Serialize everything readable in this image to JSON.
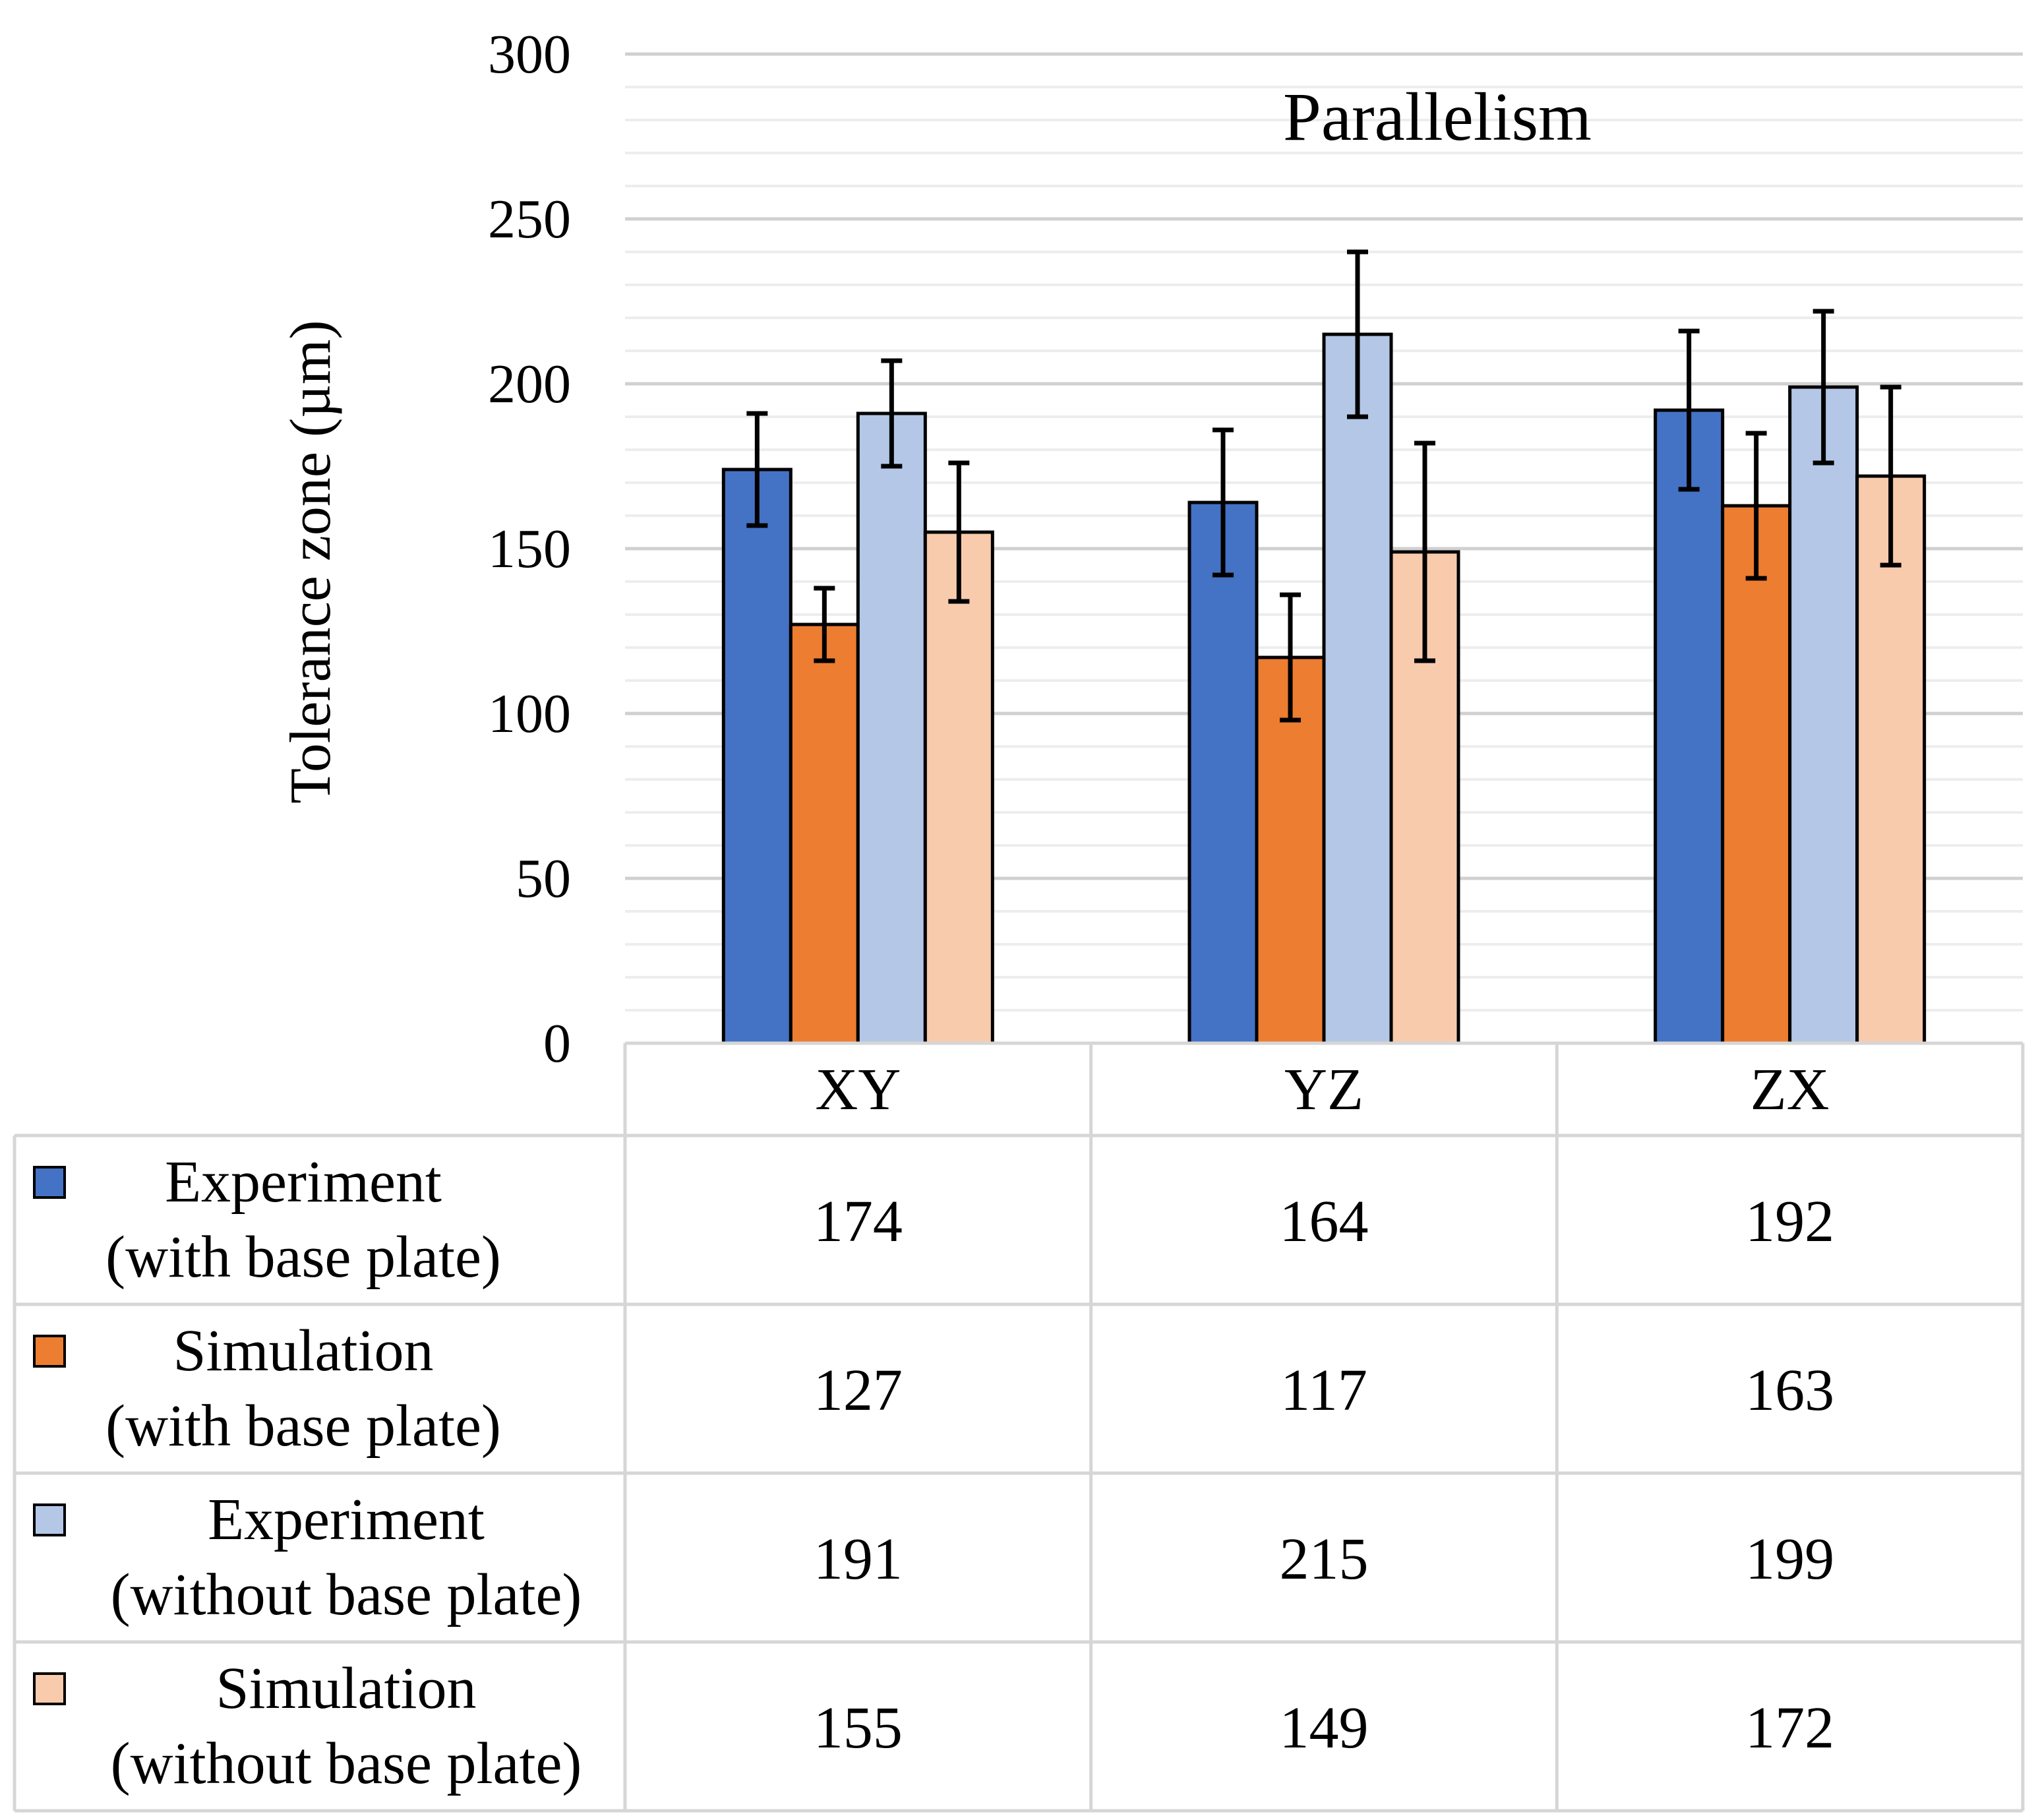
{
  "chart_data": {
    "type": "bar",
    "title": "Parallelism",
    "xlabel": "",
    "ylabel": "Tolerance zone (µm)",
    "ylim": [
      0,
      300
    ],
    "yticks": [
      "0",
      "50",
      "100",
      "150",
      "200",
      "250",
      "300"
    ],
    "categories": [
      "XY",
      "YZ",
      "ZX"
    ],
    "grid": true,
    "series": [
      {
        "name": "Experiment\n(with base plate)",
        "label_lines": [
          "Experiment",
          "(with base plate)"
        ],
        "color": "#4472C4",
        "values": [
          174,
          164,
          192
        ],
        "value_labels": [
          "174",
          "164",
          "192"
        ],
        "error_low": [
          157,
          142,
          168
        ],
        "error_high": [
          191,
          186,
          216
        ]
      },
      {
        "name": "Simulation\n(with base plate)",
        "label_lines": [
          "Simulation",
          "(with base plate)"
        ],
        "color": "#ED7D31",
        "values": [
          127,
          117,
          163
        ],
        "value_labels": [
          "127",
          "117",
          "163"
        ],
        "error_low": [
          116,
          98,
          141
        ],
        "error_high": [
          138,
          136,
          185
        ]
      },
      {
        "name": "Experiment\n(without base plate)",
        "label_lines": [
          "Experiment",
          "(without base plate)"
        ],
        "color": "#B4C7E7",
        "values": [
          191,
          215,
          199
        ],
        "value_labels": [
          "191",
          "215",
          "199"
        ],
        "error_low": [
          175,
          190,
          176
        ],
        "error_high": [
          207,
          240,
          222
        ]
      },
      {
        "name": "Simulation\n(without base plate)",
        "label_lines": [
          "Simulation",
          "(without base plate)"
        ],
        "color": "#F8CBAD",
        "values": [
          155,
          149,
          172
        ],
        "value_labels": [
          "155",
          "149",
          "172"
        ],
        "error_low": [
          134,
          116,
          145
        ],
        "error_high": [
          176,
          182,
          199
        ]
      }
    ]
  }
}
